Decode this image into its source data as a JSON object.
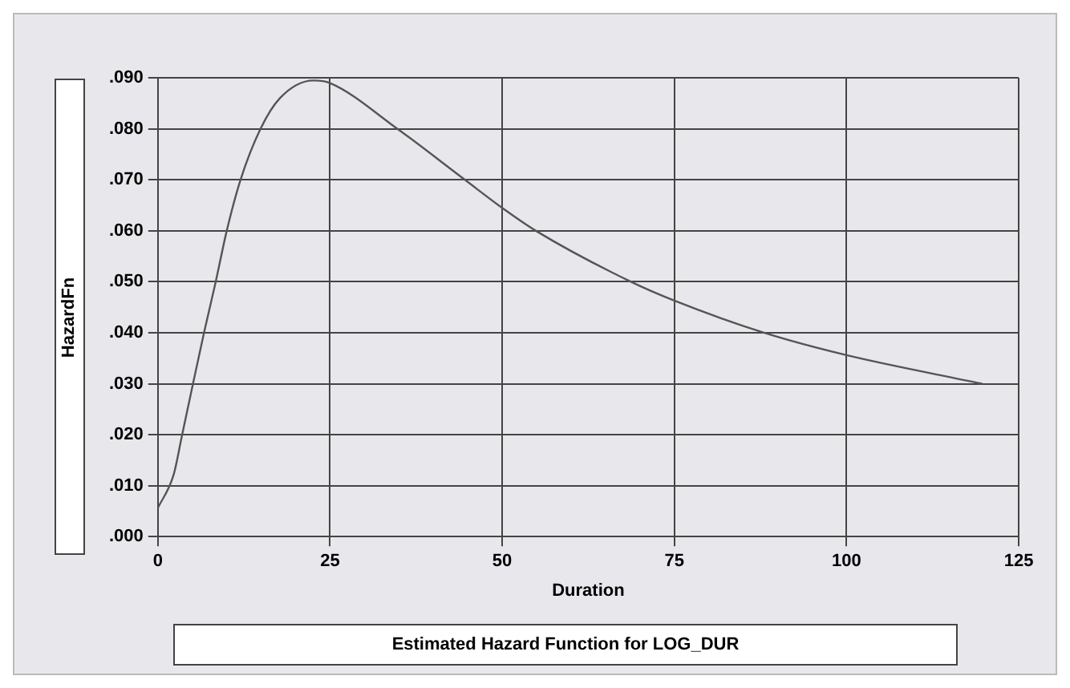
{
  "chart_data": {
    "type": "line",
    "title": "Estimated Hazard Function for LOG_DUR",
    "xlabel": "Duration",
    "ylabel": "HazardFn",
    "x": [
      0,
      2.3,
      3.5,
      5.1,
      6.7,
      8.4,
      10,
      12,
      14.9,
      17.7,
      22.6,
      25,
      34.8,
      44.6,
      50,
      54.9,
      68.7,
      75,
      88,
      100,
      119.7
    ],
    "series": [
      {
        "color": "#555555",
        "values": [
          0.0056,
          0.0122,
          0.0198,
          0.03,
          0.04,
          0.05,
          0.06,
          0.07,
          0.08,
          0.086,
          0.0895,
          0.089,
          0.08,
          0.07,
          0.0645,
          0.06,
          0.05,
          0.0463,
          0.04,
          0.0356,
          0.03
        ]
      }
    ],
    "xlim": [
      0,
      125
    ],
    "xticks": [
      0,
      25,
      50,
      75,
      100,
      125
    ],
    "ylim": [
      0,
      0.09
    ],
    "yticks": [
      {
        "value": 0,
        "label": ".000"
      },
      {
        "value": 0.01,
        "label": ".010"
      },
      {
        "value": 0.02,
        "label": ".020"
      },
      {
        "value": 0.03,
        "label": ".030"
      },
      {
        "value": 0.04,
        "label": ".040"
      },
      {
        "value": 0.05,
        "label": ".050"
      },
      {
        "value": 0.06,
        "label": ".060"
      },
      {
        "value": 0.07,
        "label": ".070"
      },
      {
        "value": 0.08,
        "label": ".080"
      },
      {
        "value": 0.09,
        "label": ".090"
      }
    ],
    "grid": true,
    "marker": "none",
    "line_style": "solid",
    "legend": false
  }
}
